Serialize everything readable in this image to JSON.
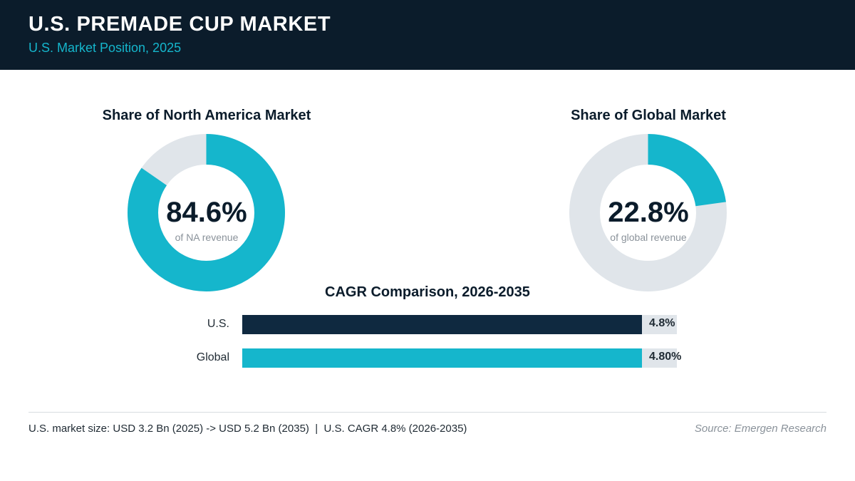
{
  "header": {
    "title": "U.S. PREMADE CUP MARKET",
    "subtitle": "U.S. Market Position, 2025"
  },
  "colors": {
    "header_bg": "#0b1c2b",
    "accent_teal": "#15b6cc",
    "navy": "#0f2940",
    "track_gray": "#e0e5ea"
  },
  "chart_data": [
    {
      "type": "pie",
      "title": "Share of North America Market",
      "center_value": "84.6%",
      "center_caption": "of NA revenue",
      "values": [
        84.6,
        15.4
      ],
      "colors": [
        "#15b6cc",
        "#e0e5ea"
      ]
    },
    {
      "type": "pie",
      "title": "Share of Global Market",
      "center_value": "22.8%",
      "center_caption": "of global revenue",
      "values": [
        22.8,
        77.2
      ],
      "colors": [
        "#15b6cc",
        "#e0e5ea"
      ]
    },
    {
      "type": "bar",
      "title": "CAGR Comparison, 2026-2035",
      "categories": [
        "U.S.",
        "Global"
      ],
      "values": [
        4.8,
        4.8
      ],
      "value_labels": [
        "4.8%",
        "4.80%"
      ],
      "colors": [
        "#0f2940",
        "#15b6cc"
      ]
    }
  ],
  "footer": {
    "note": "U.S. market size: USD 3.2 Bn (2025) -> USD 5.2 Bn (2035)  |  U.S. CAGR 4.8% (2026-2035)",
    "source": "Source: Emergen Research"
  }
}
